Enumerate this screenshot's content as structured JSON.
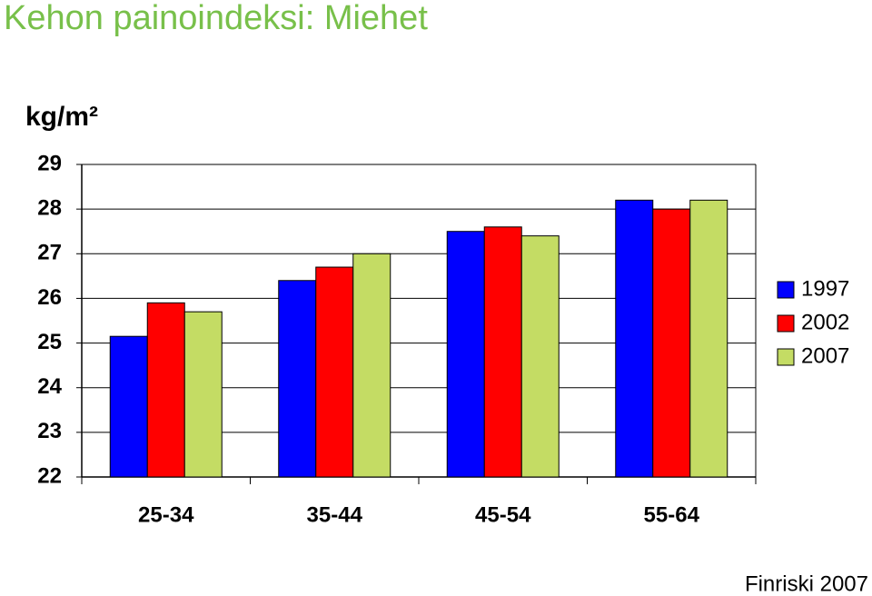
{
  "chart_data": {
    "type": "bar",
    "title": "Kehon painoindeksi: Miehet",
    "y_label": "kg/m²",
    "source": "Finriski 2007",
    "categories": [
      "25-34",
      "35-44",
      "45-54",
      "55-64"
    ],
    "series": [
      {
        "name": "1997",
        "color": "#0000ff",
        "values": [
          25.15,
          26.4,
          27.5,
          28.2
        ]
      },
      {
        "name": "2002",
        "color": "#ff0000",
        "values": [
          25.9,
          26.7,
          27.6,
          28.0
        ]
      },
      {
        "name": "2007",
        "color": "#c4dc64",
        "values": [
          25.7,
          27.0,
          27.4,
          28.2
        ]
      }
    ],
    "ylim": [
      22,
      29
    ],
    "yticks": [
      22,
      23,
      24,
      25,
      26,
      27,
      28,
      29
    ],
    "grid": true,
    "legend": "right"
  }
}
